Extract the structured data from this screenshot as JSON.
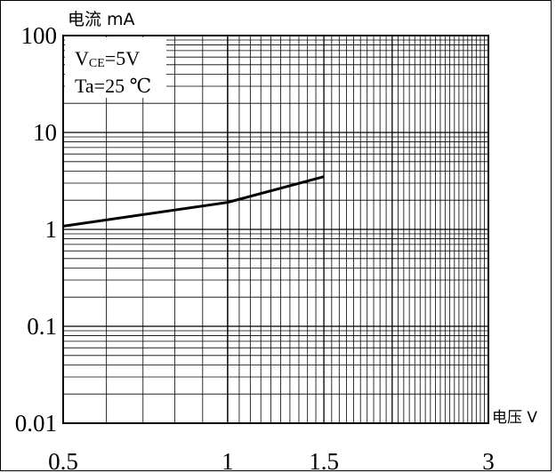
{
  "chart_data": {
    "type": "line",
    "title": "",
    "ylabel": "电流 mA",
    "xlabel": "电压 V",
    "x_ticks": [
      "0.5",
      "1",
      "1.5",
      "3"
    ],
    "y_ticks": [
      "0.01",
      "0.1",
      "1",
      "10",
      "100"
    ],
    "x_scale": "log",
    "y_scale": "log",
    "xlim": [
      0.5,
      3
    ],
    "ylim": [
      0.01,
      100
    ],
    "grid": true,
    "annotations": {
      "line1_main": "V",
      "line1_sub": "CE",
      "line1_rest": "=5V",
      "line2": "Ta=25 ℃"
    },
    "series": [
      {
        "x": [
          0.5,
          1.0,
          1.5
        ],
        "y": [
          1.08,
          1.9,
          3.5
        ]
      }
    ]
  }
}
